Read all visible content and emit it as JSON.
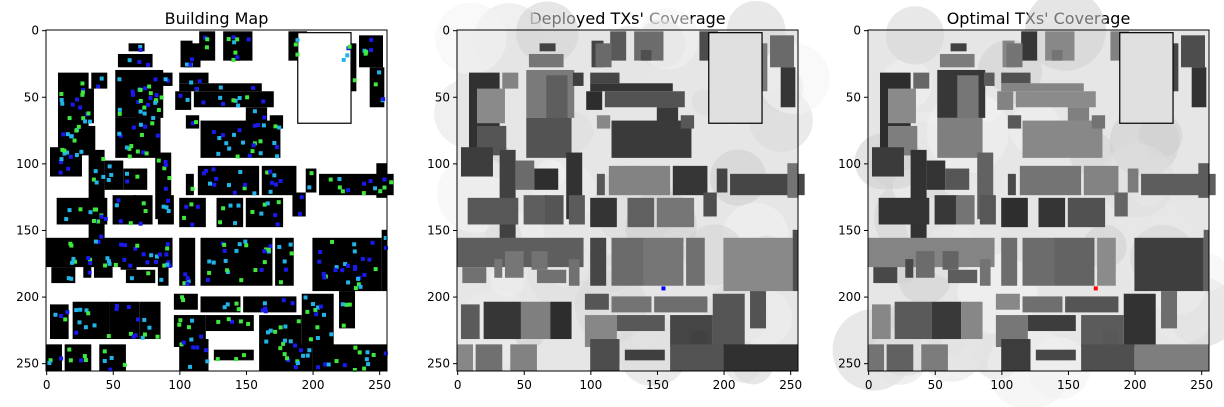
{
  "chart_data": [
    {
      "type": "heatmap",
      "title": "Building Map",
      "xlim": [
        0,
        255
      ],
      "ylim": [
        255,
        0
      ],
      "xticks": [
        0,
        50,
        100,
        150,
        200,
        250
      ],
      "yticks": [
        0,
        50,
        100,
        150,
        200,
        250
      ],
      "xtick_labels": [
        "0",
        "50",
        "100",
        "150",
        "200",
        "250"
      ],
      "ytick_labels": [
        "0",
        "50",
        "100",
        "150",
        "200",
        "250"
      ],
      "background": "#ffffff",
      "building_color": "#000000",
      "marker_colors": [
        "#22b4e8",
        "#3ee83e",
        "#1a1aee"
      ],
      "grid": false
    },
    {
      "type": "heatmap",
      "title": "Deployed TXs' Coverage",
      "xlim": [
        0,
        255
      ],
      "ylim": [
        255,
        0
      ],
      "xticks": [
        0,
        50,
        100,
        150,
        200,
        250
      ],
      "yticks": [
        0,
        50,
        100,
        150,
        200,
        250
      ],
      "xtick_labels": [
        "0",
        "50",
        "100",
        "150",
        "200",
        "250"
      ],
      "ytick_labels": [
        "0",
        "50",
        "100",
        "150",
        "200",
        "250"
      ],
      "colormap": "gray",
      "tx_markers": [
        {
          "x": 155,
          "y": 194,
          "color": "#0000ff"
        }
      ],
      "grid": false
    },
    {
      "type": "heatmap",
      "title": "Optimal TXs' Coverage",
      "xlim": [
        0,
        255
      ],
      "ylim": [
        255,
        0
      ],
      "xticks": [
        0,
        50,
        100,
        150,
        200,
        250
      ],
      "yticks": [
        0,
        50,
        100,
        150,
        200,
        250
      ],
      "xtick_labels": [
        "0",
        "50",
        "100",
        "150",
        "200",
        "250"
      ],
      "ytick_labels": [
        "0",
        "50",
        "100",
        "150",
        "200",
        "250"
      ],
      "colormap": "gray",
      "tx_markers": [
        {
          "x": 171,
          "y": 194,
          "color": "#ff0000"
        }
      ],
      "grid": false
    }
  ]
}
